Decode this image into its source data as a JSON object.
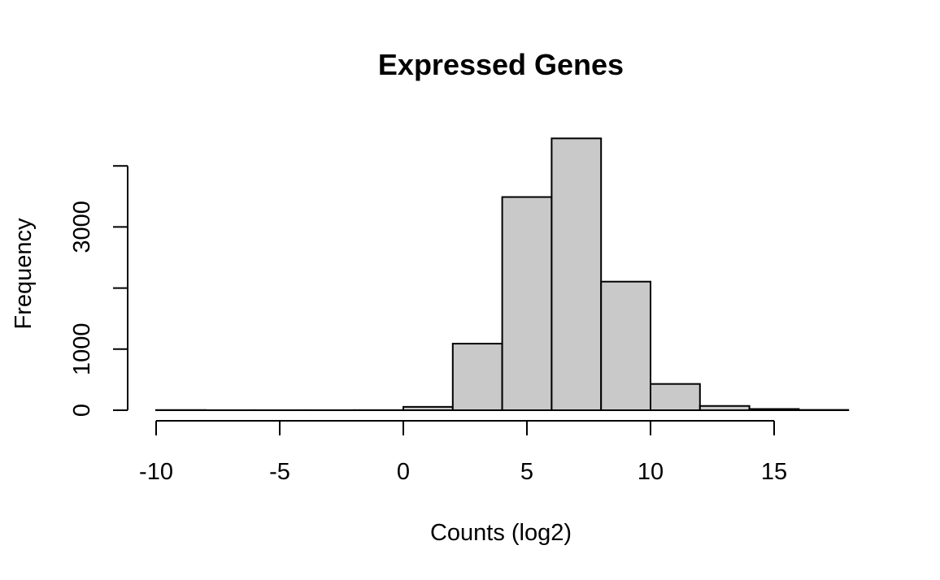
{
  "chart_data": {
    "type": "bar",
    "title": "Expressed Genes",
    "xlabel": "Counts (log2)",
    "ylabel": "Frequency",
    "bin_edges": [
      -10,
      -8,
      -6,
      -4,
      -2,
      0,
      2,
      4,
      6,
      8,
      10,
      12,
      14,
      16,
      18
    ],
    "values": [
      3,
      1,
      1,
      1,
      2,
      55,
      1090,
      3490,
      4450,
      2105,
      430,
      70,
      20,
      5
    ],
    "x_ticks": [
      -10,
      -5,
      0,
      5,
      10,
      15
    ],
    "x_tick_labels": [
      "-10",
      "-5",
      "0",
      "5",
      "10",
      "15"
    ],
    "y_ticks": [
      0,
      1000,
      2000,
      3000,
      4000
    ],
    "y_tick_labels": [
      "0",
      "1000",
      "",
      "3000",
      ""
    ],
    "xlim": [
      -10,
      18
    ],
    "ylim": [
      0,
      4450
    ],
    "grid": false,
    "bar_color": "#c9c9c9",
    "edge_color": "#000000"
  }
}
